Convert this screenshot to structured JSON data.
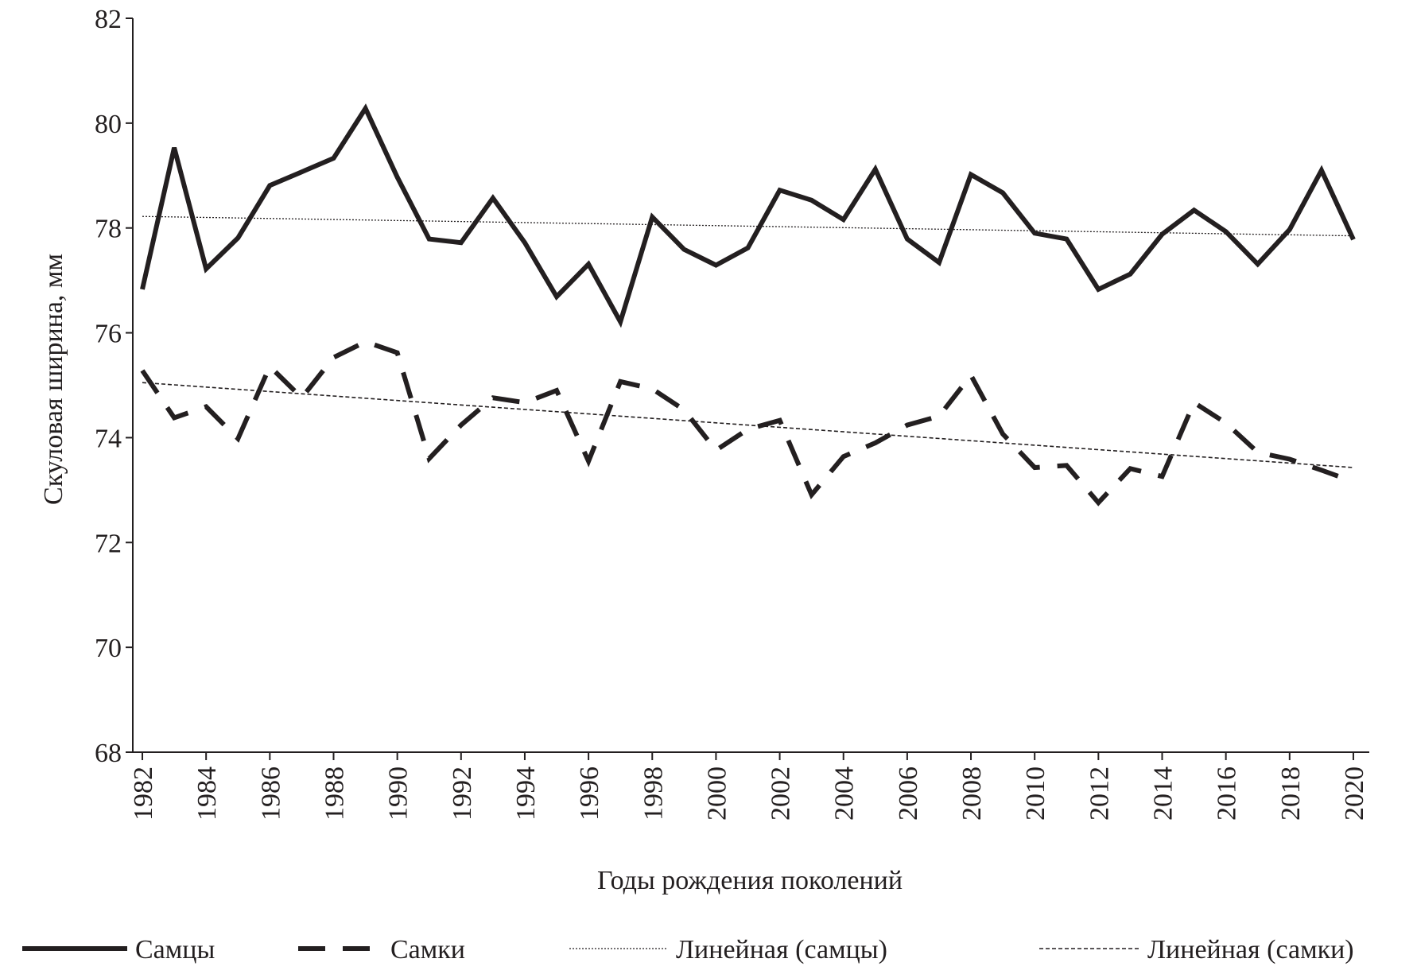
{
  "chart_data": {
    "type": "line",
    "x_label": "Годы рождения поколений",
    "y_label": "Скуловая ширина, мм",
    "x": [
      1982,
      1983,
      1984,
      1985,
      1986,
      1987,
      1988,
      1989,
      1990,
      1991,
      1992,
      1993,
      1994,
      1995,
      1996,
      1997,
      1998,
      1999,
      2000,
      2001,
      2002,
      2003,
      2004,
      2005,
      2006,
      2007,
      2008,
      2009,
      2010,
      2011,
      2012,
      2013,
      2014,
      2015,
      2016,
      2017,
      2018,
      2019,
      2020
    ],
    "series": [
      {
        "name": "Самцы",
        "color": "#231f20",
        "style": "solid",
        "values": [
          76.83,
          79.53,
          77.22,
          77.81,
          78.81,
          79.07,
          79.33,
          80.28,
          78.97,
          77.79,
          77.72,
          78.57,
          77.72,
          76.69,
          77.31,
          76.21,
          78.21,
          77.59,
          77.29,
          77.62,
          78.72,
          78.53,
          78.16,
          79.12,
          77.79,
          77.34,
          79.02,
          78.67,
          77.9,
          77.79,
          76.83,
          77.12,
          77.88,
          78.34,
          77.93,
          77.31,
          77.97,
          79.1,
          77.78
        ]
      },
      {
        "name": "Самки",
        "color": "#231f20",
        "style": "dashed",
        "values": [
          75.28,
          74.38,
          74.59,
          73.98,
          75.36,
          74.76,
          75.53,
          75.83,
          75.62,
          73.6,
          74.24,
          74.76,
          74.67,
          74.9,
          73.55,
          75.07,
          74.93,
          74.53,
          73.76,
          74.16,
          74.33,
          72.91,
          73.64,
          73.9,
          74.24,
          74.41,
          75.19,
          74.07,
          73.43,
          73.47,
          72.76,
          73.41,
          73.26,
          74.67,
          74.28,
          73.72,
          73.59,
          73.38,
          73.16
        ]
      },
      {
        "name": "Линейная (самцы)",
        "color": "#231f20",
        "style": "dotted",
        "x": [
          1982,
          2020
        ],
        "values": [
          78.22,
          77.85
        ]
      },
      {
        "name": "Линейная (самки)",
        "color": "#231f20",
        "style": "trend-dashed",
        "x": [
          1982,
          2020
        ],
        "values": [
          75.05,
          73.43
        ]
      }
    ],
    "xlim": [
      1981.7,
      2020.5
    ],
    "xticks": [
      1982,
      1984,
      1986,
      1988,
      1990,
      1992,
      1994,
      1996,
      1998,
      2000,
      2002,
      2004,
      2006,
      2008,
      2010,
      2012,
      2014,
      2016,
      2018,
      2020
    ],
    "ylim": [
      68,
      82
    ],
    "yticks": [
      68,
      70,
      72,
      74,
      76,
      78,
      80,
      82
    ]
  }
}
